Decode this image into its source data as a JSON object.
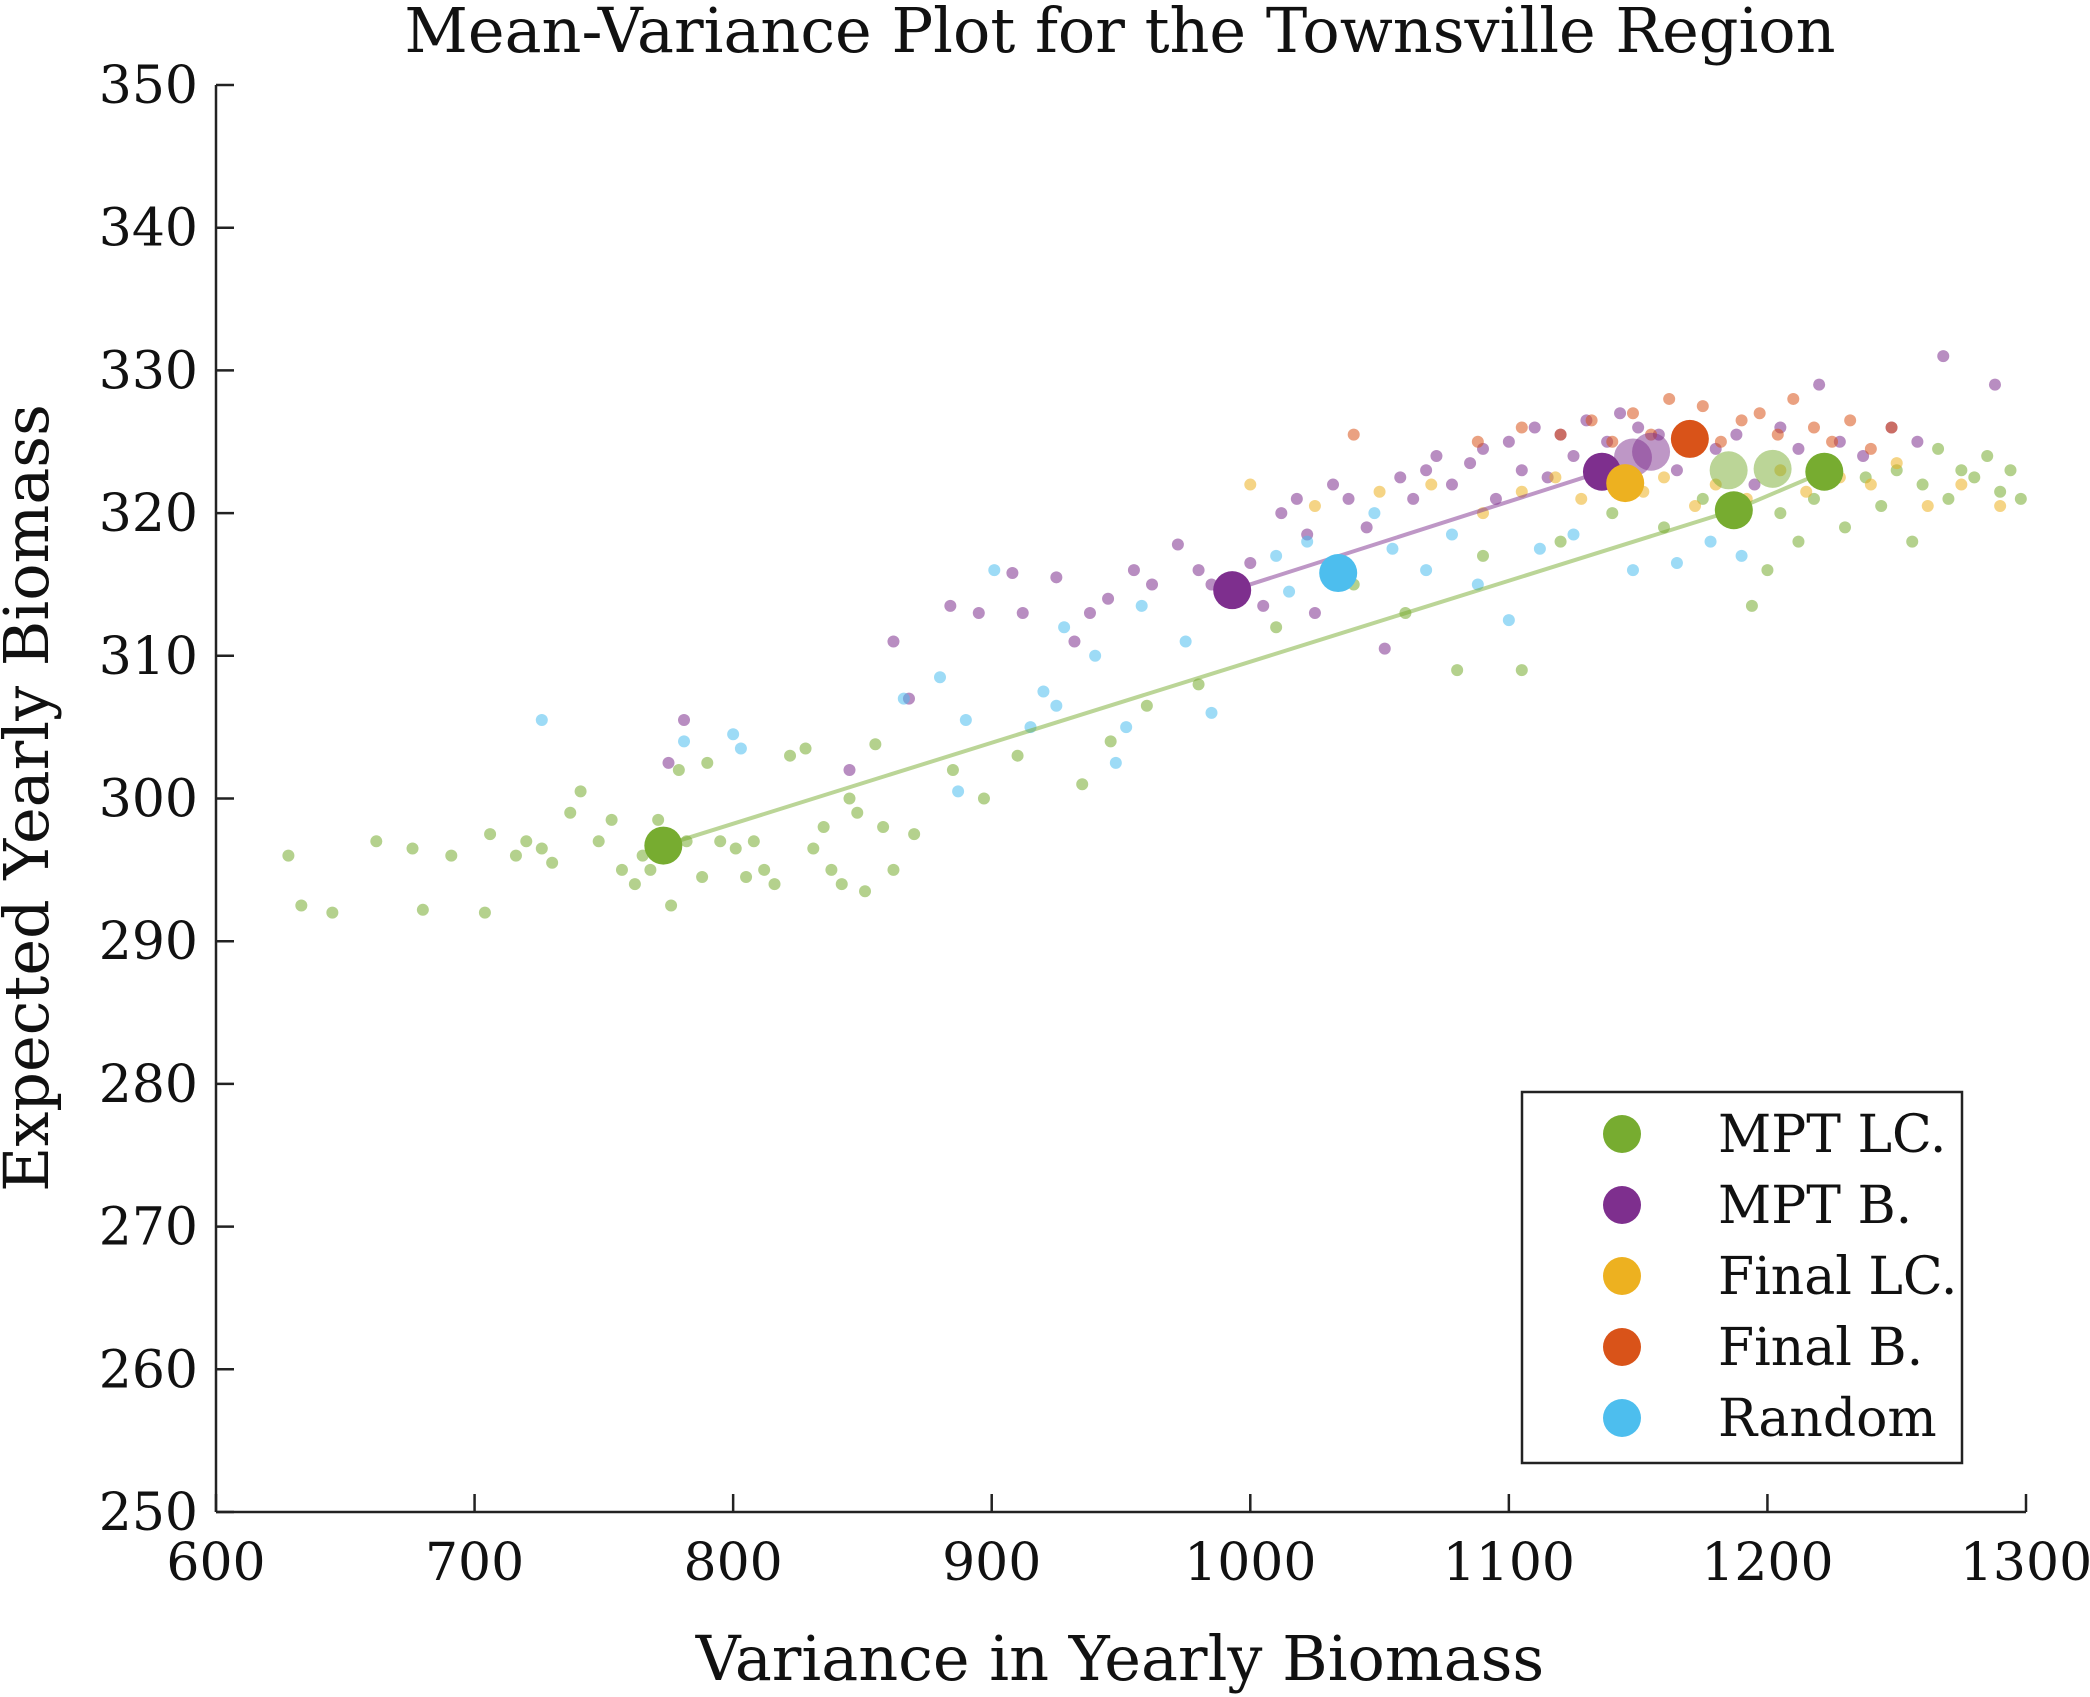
{
  "chart_data": {
    "type": "scatter",
    "title": "Mean-Variance Plot for the Townsville Region",
    "xlabel": "Variance in Yearly Biomass",
    "ylabel": "Expected Yearly Biomass",
    "xlim": [
      600,
      1300
    ],
    "ylim": [
      250,
      350
    ],
    "xticks": [
      "600",
      "700",
      "800",
      "900",
      "1000",
      "1100",
      "1200",
      "1300"
    ],
    "yticks": [
      "250",
      "260",
      "270",
      "280",
      "290",
      "300",
      "310",
      "320",
      "330",
      "340",
      "350"
    ],
    "legend_position": "bottom-right",
    "series": [
      {
        "name": "MPT LC.",
        "color": "#77AC30",
        "frontier": [
          [
            773,
            296.7
          ],
          [
            1187,
            320.2
          ],
          [
            1222,
            322.9
          ]
        ],
        "highlights": [
          [
            773,
            296.7
          ],
          [
            1187,
            320.2
          ],
          [
            1222,
            322.9
          ]
        ],
        "light_highlights": [
          [
            1185,
            323.0
          ],
          [
            1202,
            323.1
          ]
        ],
        "cloud": [
          [
            628,
            296
          ],
          [
            633,
            292.5
          ],
          [
            645,
            292
          ],
          [
            662,
            297
          ],
          [
            676,
            296.5
          ],
          [
            680,
            292.2
          ],
          [
            691,
            296
          ],
          [
            704,
            292
          ],
          [
            706,
            297.5
          ],
          [
            716,
            296
          ],
          [
            720,
            297
          ],
          [
            726,
            296.5
          ],
          [
            730,
            295.5
          ],
          [
            737,
            299
          ],
          [
            741,
            300.5
          ],
          [
            748,
            297
          ],
          [
            753,
            298.5
          ],
          [
            757,
            295
          ],
          [
            762,
            294
          ],
          [
            765,
            296
          ],
          [
            768,
            295
          ],
          [
            771,
            298.5
          ],
          [
            776,
            292.5
          ],
          [
            779,
            302
          ],
          [
            782,
            297
          ],
          [
            788,
            294.5
          ],
          [
            790,
            302.5
          ],
          [
            795,
            297
          ],
          [
            801,
            296.5
          ],
          [
            805,
            294.5
          ],
          [
            808,
            297
          ],
          [
            812,
            295
          ],
          [
            816,
            294
          ],
          [
            822,
            303
          ],
          [
            828,
            303.5
          ],
          [
            831,
            296.5
          ],
          [
            835,
            298
          ],
          [
            838,
            295
          ],
          [
            842,
            294
          ],
          [
            845,
            300
          ],
          [
            848,
            299
          ],
          [
            851,
            293.5
          ],
          [
            855,
            303.8
          ],
          [
            858,
            298
          ],
          [
            862,
            295
          ],
          [
            870,
            297.5
          ],
          [
            885,
            302
          ],
          [
            897,
            300
          ],
          [
            910,
            303
          ],
          [
            935,
            301
          ],
          [
            946,
            304
          ],
          [
            960,
            306.5
          ],
          [
            980,
            308
          ],
          [
            1010,
            312
          ],
          [
            1040,
            315
          ],
          [
            1060,
            313
          ],
          [
            1080,
            309
          ],
          [
            1090,
            317
          ],
          [
            1105,
            309
          ],
          [
            1120,
            318
          ],
          [
            1140,
            320
          ],
          [
            1160,
            319
          ],
          [
            1175,
            321
          ],
          [
            1194,
            313.5
          ],
          [
            1200,
            316
          ],
          [
            1205,
            320
          ],
          [
            1212,
            318
          ],
          [
            1218,
            321
          ],
          [
            1230,
            319
          ],
          [
            1238,
            322.5
          ],
          [
            1244,
            320.5
          ],
          [
            1250,
            323
          ],
          [
            1256,
            318
          ],
          [
            1260,
            322
          ],
          [
            1266,
            324.5
          ],
          [
            1270,
            321
          ],
          [
            1275,
            323
          ],
          [
            1280,
            322.5
          ],
          [
            1285,
            324
          ],
          [
            1290,
            321.5
          ],
          [
            1294,
            323
          ],
          [
            1298,
            321
          ]
        ]
      },
      {
        "name": "MPT B.",
        "color": "#7E2F8E",
        "frontier": [
          [
            993,
            314.6
          ],
          [
            1136,
            322.9
          ]
        ],
        "highlights": [
          [
            993,
            314.6
          ],
          [
            1136,
            322.9
          ]
        ],
        "light_highlights": [
          [
            1148,
            323.9
          ],
          [
            1155,
            324.3
          ]
        ],
        "cloud": [
          [
            775,
            302.5
          ],
          [
            781,
            305.5
          ],
          [
            845,
            302
          ],
          [
            862,
            311
          ],
          [
            868,
            307
          ],
          [
            884,
            313.5
          ],
          [
            895,
            313
          ],
          [
            908,
            315.8
          ],
          [
            912,
            313
          ],
          [
            925,
            315.5
          ],
          [
            932,
            311
          ],
          [
            938,
            313
          ],
          [
            945,
            314
          ],
          [
            955,
            316
          ],
          [
            962,
            315
          ],
          [
            972,
            317.8
          ],
          [
            980,
            316
          ],
          [
            985,
            315
          ],
          [
            1000,
            316.5
          ],
          [
            1005,
            313.5
          ],
          [
            1012,
            320
          ],
          [
            1018,
            321
          ],
          [
            1022,
            318.5
          ],
          [
            1025,
            313
          ],
          [
            1032,
            322
          ],
          [
            1038,
            321
          ],
          [
            1045,
            319
          ],
          [
            1052,
            310.5
          ],
          [
            1058,
            322.5
          ],
          [
            1063,
            321
          ],
          [
            1068,
            323
          ],
          [
            1072,
            324
          ],
          [
            1078,
            322
          ],
          [
            1085,
            323.5
          ],
          [
            1090,
            324.5
          ],
          [
            1095,
            321
          ],
          [
            1100,
            325
          ],
          [
            1105,
            323
          ],
          [
            1110,
            326
          ],
          [
            1115,
            322.5
          ],
          [
            1120,
            325.5
          ],
          [
            1125,
            324
          ],
          [
            1130,
            326.5
          ],
          [
            1138,
            325
          ],
          [
            1143,
            327
          ],
          [
            1150,
            326
          ],
          [
            1158,
            325.5
          ],
          [
            1165,
            323
          ],
          [
            1172,
            326
          ],
          [
            1180,
            324.5
          ],
          [
            1188,
            325.5
          ],
          [
            1195,
            322
          ],
          [
            1205,
            326
          ],
          [
            1212,
            324.5
          ],
          [
            1220,
            329
          ],
          [
            1228,
            325
          ],
          [
            1237,
            324
          ],
          [
            1248,
            326
          ],
          [
            1258,
            325
          ],
          [
            1268,
            331
          ],
          [
            1288,
            329
          ]
        ]
      },
      {
        "name": "Final LC.",
        "color": "#EDB120",
        "frontier": [],
        "highlights": [
          [
            1145,
            322.1
          ]
        ],
        "light_highlights": [],
        "cloud": [
          [
            1000,
            322
          ],
          [
            1025,
            320.5
          ],
          [
            1050,
            321.5
          ],
          [
            1070,
            322
          ],
          [
            1090,
            320
          ],
          [
            1105,
            321.5
          ],
          [
            1118,
            322.5
          ],
          [
            1128,
            321
          ],
          [
            1138,
            323
          ],
          [
            1152,
            321.5
          ],
          [
            1160,
            322.5
          ],
          [
            1172,
            320.5
          ],
          [
            1180,
            322
          ],
          [
            1192,
            321
          ],
          [
            1205,
            323
          ],
          [
            1215,
            321.5
          ],
          [
            1228,
            322.5
          ],
          [
            1240,
            322
          ],
          [
            1250,
            323.5
          ],
          [
            1262,
            320.5
          ],
          [
            1275,
            322
          ],
          [
            1290,
            320.5
          ]
        ]
      },
      {
        "name": "Final B.",
        "color": "#D95319",
        "frontier": [],
        "highlights": [
          [
            1170,
            325.2
          ]
        ],
        "light_highlights": [],
        "cloud": [
          [
            1040,
            325.5
          ],
          [
            1088,
            325
          ],
          [
            1105,
            326
          ],
          [
            1120,
            325.5
          ],
          [
            1132,
            326.5
          ],
          [
            1140,
            325
          ],
          [
            1148,
            327
          ],
          [
            1155,
            325.5
          ],
          [
            1162,
            328
          ],
          [
            1168,
            326
          ],
          [
            1175,
            327.5
          ],
          [
            1182,
            325
          ],
          [
            1190,
            326.5
          ],
          [
            1197,
            327
          ],
          [
            1204,
            325.5
          ],
          [
            1210,
            328
          ],
          [
            1218,
            326
          ],
          [
            1225,
            325
          ],
          [
            1232,
            326.5
          ],
          [
            1240,
            324.5
          ],
          [
            1248,
            326
          ]
        ]
      },
      {
        "name": "Random",
        "color": "#4DBEEE",
        "frontier": [],
        "highlights": [
          [
            1034,
            315.8
          ]
        ],
        "light_highlights": [],
        "cloud": [
          [
            726,
            305.5
          ],
          [
            781,
            304
          ],
          [
            800,
            304.5
          ],
          [
            803,
            303.5
          ],
          [
            866,
            307
          ],
          [
            880,
            308.5
          ],
          [
            887,
            300.5
          ],
          [
            890,
            305.5
          ],
          [
            901,
            316
          ],
          [
            915,
            305
          ],
          [
            920,
            307.5
          ],
          [
            925,
            306.5
          ],
          [
            928,
            312
          ],
          [
            940,
            310
          ],
          [
            948,
            302.5
          ],
          [
            952,
            305
          ],
          [
            958,
            313.5
          ],
          [
            975,
            311
          ],
          [
            985,
            306
          ],
          [
            1010,
            317
          ],
          [
            1015,
            314.5
          ],
          [
            1022,
            318
          ],
          [
            1048,
            320
          ],
          [
            1055,
            317.5
          ],
          [
            1068,
            316
          ],
          [
            1078,
            318.5
          ],
          [
            1088,
            315
          ],
          [
            1100,
            312.5
          ],
          [
            1112,
            317.5
          ],
          [
            1125,
            318.5
          ],
          [
            1148,
            316
          ],
          [
            1165,
            316.5
          ],
          [
            1178,
            318
          ],
          [
            1190,
            317
          ]
        ]
      }
    ]
  }
}
